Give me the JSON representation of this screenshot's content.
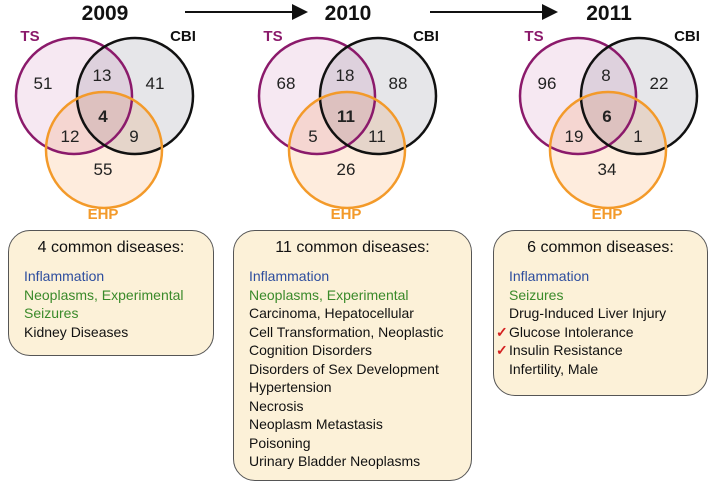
{
  "colors": {
    "ts": "#8b1a6b",
    "cbi": "#111111",
    "ehp": "#f39a2a",
    "box": "#fcf1d8",
    "category_blue": "#2d4d9e",
    "category_green": "#3a8a2a",
    "check": "#d42020"
  },
  "panels": [
    {
      "year": "2009",
      "labels": {
        "ts": "TS",
        "cbi": "CBI",
        "ehp": "EHP"
      },
      "counts": {
        "ts_only": "51",
        "cbi_only": "41",
        "ehp_only": "55",
        "ts_cbi": "13",
        "ts_ehp": "12",
        "cbi_ehp": "9",
        "all": "4"
      },
      "box": {
        "title": "4 common diseases:",
        "items": [
          {
            "text": "Inflammation",
            "color": "blue"
          },
          {
            "text": "Neoplasms, Experimental",
            "color": "green"
          },
          {
            "text": "Seizures",
            "color": "green"
          },
          {
            "text": "Kidney Diseases",
            "color": "black"
          }
        ]
      }
    },
    {
      "year": "2010",
      "labels": {
        "ts": "TS",
        "cbi": "CBI",
        "ehp": "EHP"
      },
      "counts": {
        "ts_only": "68",
        "cbi_only": "88",
        "ehp_only": "26",
        "ts_cbi": "18",
        "ts_ehp": "5",
        "cbi_ehp": "11",
        "all": "11"
      },
      "box": {
        "title": "11 common diseases:",
        "items": [
          {
            "text": "Inflammation",
            "color": "blue"
          },
          {
            "text": "Neoplasms, Experimental",
            "color": "green"
          },
          {
            "text": "Carcinoma, Hepatocellular",
            "color": "black"
          },
          {
            "text": "Cell Transformation, Neoplastic",
            "color": "black"
          },
          {
            "text": "Cognition Disorders",
            "color": "black"
          },
          {
            "text": "Disorders of Sex Development",
            "color": "black"
          },
          {
            "text": "Hypertension",
            "color": "black"
          },
          {
            "text": "Necrosis",
            "color": "black"
          },
          {
            "text": "Neoplasm Metastasis",
            "color": "black"
          },
          {
            "text": "Poisoning",
            "color": "black"
          },
          {
            "text": "Urinary Bladder Neoplasms",
            "color": "black"
          }
        ]
      }
    },
    {
      "year": "2011",
      "labels": {
        "ts": "TS",
        "cbi": "CBI",
        "ehp": "EHP"
      },
      "counts": {
        "ts_only": "96",
        "cbi_only": "22",
        "ehp_only": "34",
        "ts_cbi": "8",
        "ts_ehp": "19",
        "cbi_ehp": "1",
        "all": "6"
      },
      "box": {
        "title": "6 common diseases:",
        "items": [
          {
            "text": "Inflammation",
            "color": "blue"
          },
          {
            "text": "Seizures",
            "color": "green"
          },
          {
            "text": "Drug-Induced Liver Injury",
            "color": "black"
          },
          {
            "text": "Glucose Intolerance",
            "color": "black",
            "check": "✓"
          },
          {
            "text": "Insulin Resistance",
            "color": "black",
            "check": "✓"
          },
          {
            "text": "Infertility, Male",
            "color": "black"
          }
        ]
      }
    }
  ]
}
